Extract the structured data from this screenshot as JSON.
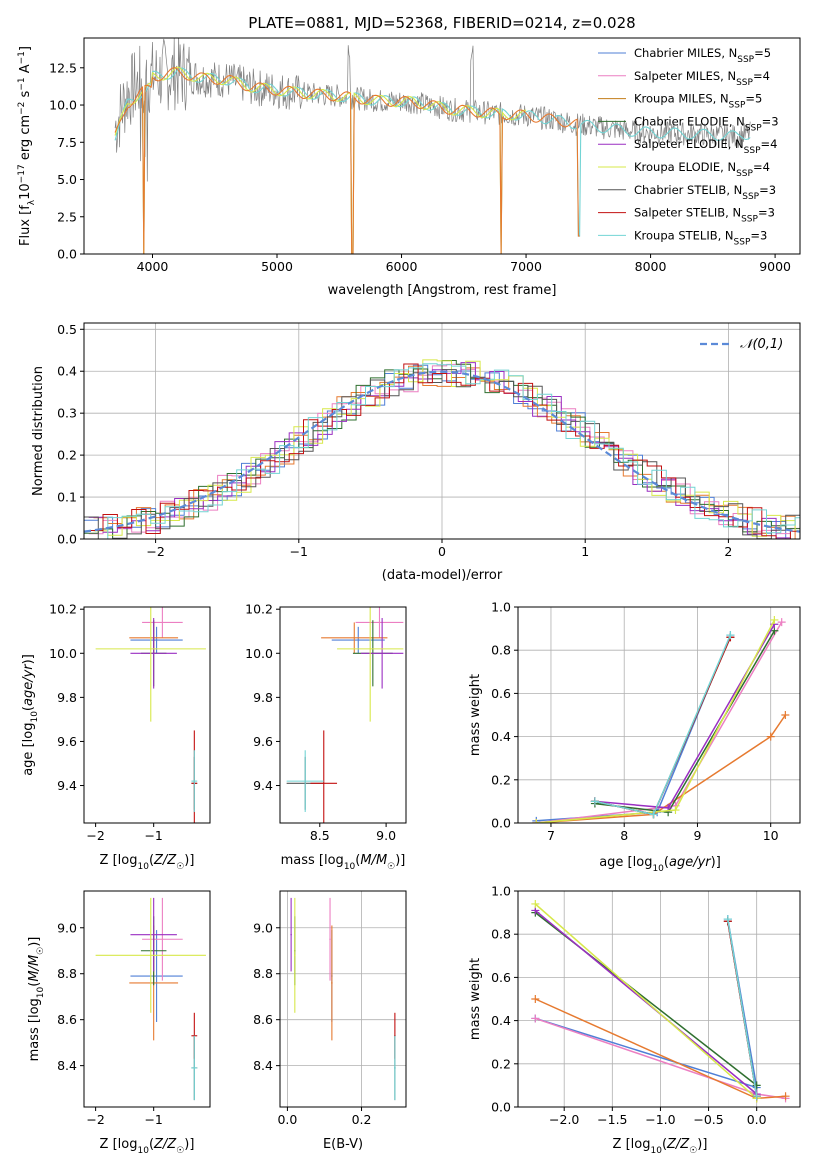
{
  "page_title": "PLATE=0881, MJD=52368, FIBERID=0214, z=0.028",
  "colors": {
    "Chabrier MILES": "#4f7fd6",
    "Salpeter MILES": "#ec7fc2",
    "Kroupa MILES": "#c27d18",
    "Chabrier ELODIE": "#2f6f2f",
    "Salpeter ELODIE": "#9a2fc2",
    "Kroupa ELODIE": "#d7e84a",
    "Chabrier STELIB": "#555555",
    "Salpeter STELIB": "#c21010",
    "Kroupa STELIB": "#72d4d4",
    "spectrum_data": "#808080",
    "model_orange": "#e67a30",
    "normal_curve": "#5b8ad8"
  },
  "chart_data": [
    {
      "id": "spectrum",
      "type": "line",
      "title": "PLATE=0881, MJD=52368, FIBERID=0214, z=0.028",
      "xlabel": "wavelength [Angstrom, rest frame]",
      "ylabel": "Flux [f_λ10^-17 erg cm^-2 s^-1 A^-1]",
      "xlim": [
        3450,
        9200
      ],
      "ylim": [
        0,
        14.5
      ],
      "xticks": [
        4000,
        5000,
        6000,
        7000,
        8000,
        9000
      ],
      "yticks": [
        0.0,
        2.5,
        5.0,
        7.5,
        10.0,
        12.5
      ],
      "grid": false,
      "legend_position": "top-right",
      "legend": [
        {
          "label": "Chabrier MILES, N",
          "sub": "SSP",
          "suffix": "=5"
        },
        {
          "label": "Salpeter MILES, N",
          "sub": "SSP",
          "suffix": "=4"
        },
        {
          "label": "Kroupa MILES, N",
          "sub": "SSP",
          "suffix": "=5"
        },
        {
          "label": "Chabrier ELODIE, N",
          "sub": "SSP",
          "suffix": "=3"
        },
        {
          "label": "Salpeter ELODIE, N",
          "sub": "SSP",
          "suffix": "=4"
        },
        {
          "label": "Kroupa ELODIE, N",
          "sub": "SSP",
          "suffix": "=4"
        },
        {
          "label": "Chabrier STELIB, N",
          "sub": "SSP",
          "suffix": "=3"
        },
        {
          "label": "Salpeter STELIB, N",
          "sub": "SSP",
          "suffix": "=3"
        },
        {
          "label": "Kroupa STELIB, N",
          "sub": "SSP",
          "suffix": "=3"
        }
      ],
      "envelope": [
        [
          3700,
          8.5
        ],
        [
          3800,
          10.8
        ],
        [
          3900,
          11.5
        ],
        [
          4000,
          11.9
        ],
        [
          4200,
          12.2
        ],
        [
          4400,
          11.8
        ],
        [
          4600,
          11.7
        ],
        [
          4800,
          11.2
        ],
        [
          5000,
          11.0
        ],
        [
          5200,
          10.8
        ],
        [
          5500,
          10.6
        ],
        [
          5800,
          10.3
        ],
        [
          6100,
          10.2
        ],
        [
          6400,
          9.7
        ],
        [
          6800,
          9.4
        ],
        [
          7000,
          9.3
        ],
        [
          7300,
          8.9
        ],
        [
          7420,
          8.7
        ],
        [
          7600,
          8.5
        ],
        [
          7900,
          8.2
        ],
        [
          8200,
          8.1
        ],
        [
          8500,
          8.0
        ],
        [
          8700,
          7.9
        ],
        [
          8800,
          8.1
        ]
      ],
      "model_dips": [
        {
          "x": 3930,
          "y": 0.0
        },
        {
          "x": 5605,
          "y": 0.0
        },
        {
          "x": 6800,
          "y": 0.0
        },
        {
          "x": 7425,
          "y": 1.2
        }
      ]
    },
    {
      "id": "residuals",
      "type": "histogram",
      "xlabel": "(data-model)/error",
      "ylabel": "Normed distribution",
      "xlim": [
        -2.5,
        2.5
      ],
      "ylim": [
        0,
        0.515
      ],
      "xticks": [
        -2,
        -1,
        0,
        1,
        2
      ],
      "yticks": [
        0.0,
        0.1,
        0.2,
        0.3,
        0.4,
        0.5
      ],
      "grid": true,
      "legend_position": "top-right",
      "legend": "𝒩(0,1)",
      "normal": {
        "mean": 0,
        "sigma": 1
      }
    },
    {
      "id": "age-vs-Z",
      "type": "scatter",
      "xlabel": "Z [log10(Z/Z☉)]",
      "ylabel": "age [log10(age/yr)]",
      "xlim": [
        -2.2,
        -0.03
      ],
      "ylim": [
        9.23,
        10.21
      ],
      "xticks": [
        -2,
        -1
      ],
      "yticks": [
        9.4,
        9.6,
        9.8,
        10.0,
        10.2
      ],
      "grid": false
    },
    {
      "id": "age-vs-mass",
      "type": "scatter",
      "xlabel": "mass [log10(M/M☉)]",
      "xlim": [
        8.2,
        9.15
      ],
      "ylim": [
        9.23,
        10.21
      ],
      "xticks": [
        8.5,
        9.0
      ],
      "yticks": [
        9.4,
        9.6,
        9.8,
        10.0,
        10.2
      ],
      "grid": false
    },
    {
      "id": "weight-vs-age",
      "type": "line",
      "xlabel": "age [log10(age/yr)]",
      "ylabel": "mass weight",
      "xlim": [
        6.55,
        10.4
      ],
      "ylim": [
        0.0,
        1.0
      ],
      "xticks": [
        7,
        8,
        9,
        10
      ],
      "yticks": [
        0.0,
        0.2,
        0.4,
        0.6,
        0.8,
        1.0
      ],
      "grid": true
    },
    {
      "id": "mass-vs-Z",
      "type": "scatter",
      "xlabel": "Z [log10(Z/Z☉)]",
      "ylabel": "mass [log10(M/M☉)]",
      "xlim": [
        -2.2,
        -0.03
      ],
      "ylim": [
        8.22,
        9.16
      ],
      "xticks": [
        -2,
        -1
      ],
      "yticks": [
        8.4,
        8.6,
        8.8,
        9.0
      ],
      "grid": false
    },
    {
      "id": "mass-vs-EBV",
      "type": "scatter",
      "xlabel": "E(B-V)",
      "xlim": [
        -0.02,
        0.32
      ],
      "ylim": [
        8.22,
        9.16
      ],
      "xticks": [
        0.0,
        0.2
      ],
      "yticks": [
        8.4,
        8.6,
        8.8,
        9.0
      ],
      "grid": true
    },
    {
      "id": "weight-vs-Z",
      "type": "line",
      "xlabel": "Z [log10(Z/Z☉)]",
      "ylabel": "mass weight",
      "xlim": [
        -2.48,
        0.45
      ],
      "ylim": [
        0.0,
        1.0
      ],
      "xticks": [
        -2.0,
        -1.5,
        -1.0,
        -0.5,
        0.0
      ],
      "yticks": [
        0.0,
        0.2,
        0.4,
        0.6,
        0.8,
        1.0
      ],
      "grid": true
    }
  ],
  "fits": [
    {
      "model": "Chabrier MILES",
      "Z": -0.95,
      "Zerr": 0.45,
      "age": 10.06,
      "ageerr": 0.06,
      "mass": 8.79,
      "masserr": 0.2,
      "ebv": 0.12,
      "ages": [
        6.8,
        8.45,
        9.45
      ],
      "weights": [
        0.01,
        0.05,
        0.87
      ],
      "Zs": [
        -2.3,
        0.0,
        -0.3
      ],
      "Zw": [
        0.41,
        0.09,
        0.87
      ]
    },
    {
      "model": "Salpeter MILES",
      "Z": -0.85,
      "Zerr": 0.35,
      "age": 10.14,
      "ageerr": 0.07,
      "mass": 8.95,
      "masserr": 0.18,
      "ebv": 0.115,
      "ages": [
        6.8,
        8.7,
        10.15
      ],
      "weights": [
        0.0,
        0.08,
        0.93
      ],
      "Zs": [
        -2.3,
        0.0,
        0.3
      ],
      "Zw": [
        0.41,
        0.06,
        0.04
      ]
    },
    {
      "model": "Kroupa MILES",
      "Z": -1.0,
      "Zerr": 0.42,
      "age": 10.07,
      "ageerr": 0.07,
      "mass": 8.76,
      "masserr": 0.25,
      "ebv": 0.12,
      "ages": [
        6.8,
        8.4,
        10.0,
        10.2
      ],
      "weights": [
        0.0,
        0.04,
        0.4,
        0.5
      ],
      "Zs": [
        -2.3,
        0.0,
        0.3
      ],
      "Zw": [
        0.5,
        0.04,
        0.05
      ]
    },
    {
      "model": "Chabrier ELODIE",
      "Z": -1.0,
      "Zerr": 0.22,
      "age": 10.0,
      "ageerr": 0.15,
      "mass": 8.9,
      "masserr": 0.15,
      "ebv": 0.02,
      "ages": [
        7.6,
        8.6,
        10.05
      ],
      "weights": [
        0.09,
        0.05,
        0.89
      ],
      "Zs": [
        -2.3,
        0.0
      ],
      "Zw": [
        0.9,
        0.1
      ]
    },
    {
      "model": "Salpeter ELODIE",
      "Z": -1.0,
      "Zerr": 0.4,
      "age": 10.0,
      "ageerr": 0.16,
      "mass": 8.97,
      "masserr": 0.16,
      "ebv": 0.01,
      "ages": [
        7.6,
        8.6,
        10.05
      ],
      "weights": [
        0.1,
        0.07,
        0.92
      ],
      "Zs": [
        -2.3,
        0.0
      ],
      "Zw": [
        0.91,
        0.06
      ]
    },
    {
      "model": "Kroupa ELODIE",
      "Z": -1.05,
      "Zerr": 0.95,
      "age": 10.02,
      "ageerr": 0.33,
      "mass": 8.88,
      "masserr": 0.25,
      "ebv": 0.02,
      "ages": [
        6.8,
        8.7,
        10.05
      ],
      "weights": [
        0.0,
        0.06,
        0.94
      ],
      "Zs": [
        -2.3,
        0.0
      ],
      "Zw": [
        0.94,
        0.04
      ]
    },
    {
      "model": "Chabrier STELIB",
      "Z": -0.3,
      "Zerr": 0.05,
      "age": 9.41,
      "ageerr": 0.12,
      "mass": 8.39,
      "masserr": 0.14,
      "ebv": 0.29,
      "ages": [
        7.6,
        8.4,
        9.45
      ],
      "weights": [
        0.1,
        0.04,
        0.86
      ],
      "Zs": [
        -0.3,
        0.0
      ],
      "Zw": [
        0.86,
        0.05
      ]
    },
    {
      "model": "Salpeter STELIB",
      "Z": -0.3,
      "Zerr": 0.05,
      "age": 9.41,
      "ageerr": 0.24,
      "mass": 8.53,
      "masserr": 0.1,
      "ebv": 0.29,
      "ages": [
        7.6,
        8.4,
        9.45
      ],
      "weights": [
        0.1,
        0.04,
        0.86
      ],
      "Zs": [
        -0.3,
        0.0
      ],
      "Zw": [
        0.86,
        0.05
      ]
    },
    {
      "model": "Kroupa STELIB",
      "Z": -0.3,
      "Zerr": 0.05,
      "age": 9.42,
      "ageerr": 0.14,
      "mass": 8.39,
      "masserr": 0.14,
      "ebv": 0.29,
      "ages": [
        7.6,
        8.4,
        9.45
      ],
      "weights": [
        0.1,
        0.04,
        0.87
      ],
      "Zs": [
        -0.3,
        0.0
      ],
      "Zw": [
        0.87,
        0.05
      ]
    }
  ]
}
